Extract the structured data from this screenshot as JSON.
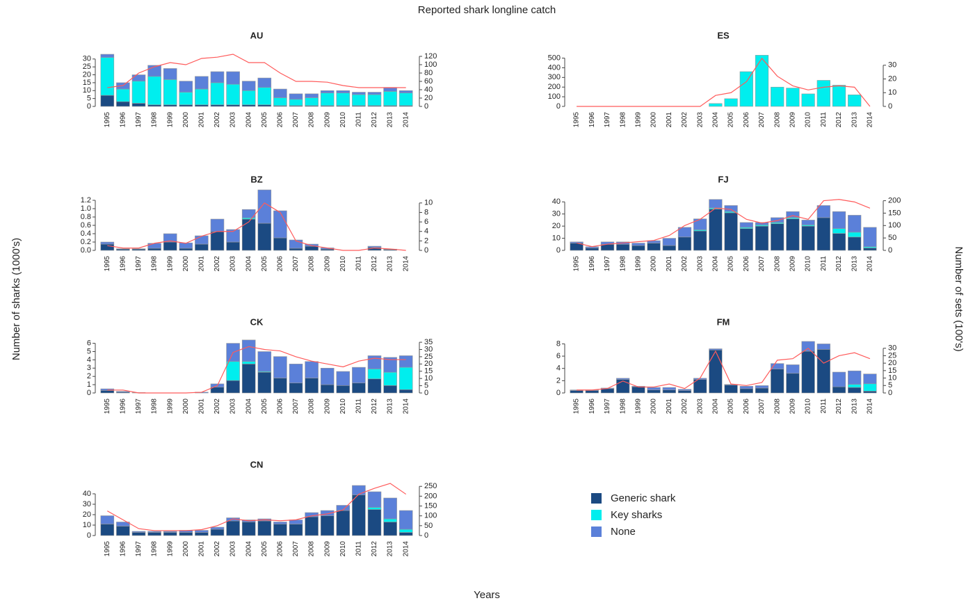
{
  "title": "Reported shark longline catch",
  "xlabel": "Years",
  "ylabel": "Number of sharks (1000's)",
  "y2label": "Number of sets (100's)",
  "chart_data": [
    {
      "type": "bar",
      "title": "AU",
      "categories": [
        "1995",
        "1996",
        "1997",
        "1998",
        "1999",
        "2000",
        "2001",
        "2002",
        "2003",
        "2004",
        "2005",
        "2006",
        "2007",
        "2008",
        "2009",
        "2010",
        "2011",
        "2012",
        "2013",
        "2014"
      ],
      "series": [
        {
          "name": "Generic shark",
          "color": "#1b4a82",
          "values": [
            7,
            3,
            2,
            1,
            1,
            1,
            1,
            1,
            1,
            1,
            1,
            0.5,
            0.5,
            0.5,
            0.5,
            0.5,
            0.5,
            0.5,
            0.5,
            0.5
          ]
        },
        {
          "name": "Key sharks",
          "color": "#00eeee",
          "values": [
            24,
            8,
            14,
            18,
            16,
            8,
            10,
            14,
            13,
            9,
            11,
            5,
            4,
            5,
            8,
            8,
            7,
            7,
            9,
            8
          ]
        },
        {
          "name": "None",
          "color": "#5b80d9",
          "values": [
            2,
            4,
            4,
            7,
            7,
            7,
            8,
            7,
            8,
            6,
            6,
            5.5,
            3.5,
            2.5,
            1.5,
            1.5,
            1.5,
            1.5,
            2.5,
            1.5
          ]
        },
        {
          "type": "line",
          "axis": "y2",
          "color": "#ff5a5a",
          "values": [
            45,
            50,
            80,
            95,
            105,
            100,
            115,
            118,
            125,
            105,
            105,
            80,
            60,
            60,
            58,
            50,
            45,
            45,
            45,
            45
          ]
        }
      ],
      "ylim": [
        0,
        33
      ],
      "yticks": [
        0,
        5,
        10,
        15,
        20,
        25,
        30
      ],
      "y2lim": [
        0,
        125
      ],
      "y2ticks": [
        0,
        20,
        40,
        60,
        80,
        100,
        120
      ]
    },
    {
      "type": "bar",
      "title": "ES",
      "categories": [
        "1995",
        "1996",
        "1997",
        "1998",
        "1999",
        "2000",
        "2001",
        "2002",
        "2003",
        "2004",
        "2005",
        "2006",
        "2007",
        "2008",
        "2009",
        "2010",
        "2011",
        "2012",
        "2013",
        "2014"
      ],
      "series": [
        {
          "name": "Generic shark",
          "color": "#1b4a82",
          "values": [
            0,
            0,
            0,
            0,
            0,
            0,
            0,
            0,
            0,
            0,
            0,
            0,
            0,
            0,
            0,
            0,
            0,
            0,
            0,
            0
          ]
        },
        {
          "name": "Key sharks",
          "color": "#00eeee",
          "values": [
            0,
            0,
            0,
            0,
            0,
            0,
            0,
            0,
            0,
            30,
            80,
            360,
            530,
            200,
            190,
            130,
            270,
            220,
            120,
            0
          ]
        },
        {
          "name": "None",
          "color": "#5b80d9",
          "values": [
            0,
            0,
            0,
            0,
            0,
            0,
            0,
            0,
            0,
            0,
            0,
            0,
            0,
            0,
            0,
            0,
            0,
            0,
            0,
            0
          ]
        },
        {
          "type": "line",
          "axis": "y2",
          "color": "#ff5a5a",
          "values": [
            0,
            0,
            0,
            0,
            0,
            0,
            0,
            0,
            0,
            8,
            10,
            18,
            35,
            22,
            15,
            12,
            14,
            15,
            14,
            0
          ]
        }
      ],
      "ylim": [
        0,
        540
      ],
      "yticks": [
        0,
        100,
        200,
        300,
        400,
        500
      ],
      "y2lim": [
        0,
        38
      ],
      "y2ticks": [
        0,
        10,
        20,
        30
      ]
    },
    {
      "type": "bar",
      "title": "BZ",
      "categories": [
        "1995",
        "1996",
        "1997",
        "1998",
        "1999",
        "2000",
        "2001",
        "2002",
        "2003",
        "2004",
        "2005",
        "2006",
        "2007",
        "2008",
        "2009",
        "2010",
        "2011",
        "2012",
        "2013",
        "2014"
      ],
      "series": [
        {
          "name": "Generic shark",
          "color": "#1b4a82",
          "values": [
            0.15,
            0.03,
            0.03,
            0.05,
            0.2,
            0.05,
            0.15,
            0.45,
            0.2,
            0.75,
            0.65,
            0.3,
            0.05,
            0.1,
            0.03,
            0,
            0,
            0.07,
            0.02,
            0
          ]
        },
        {
          "name": "Key sharks",
          "color": "#00eeee",
          "values": [
            0,
            0,
            0,
            0,
            0,
            0,
            0,
            0,
            0,
            0.03,
            0,
            0,
            0,
            0,
            0,
            0,
            0,
            0,
            0,
            0
          ]
        },
        {
          "name": "None",
          "color": "#5b80d9",
          "values": [
            0.05,
            0.01,
            0.01,
            0.12,
            0.2,
            0.13,
            0.2,
            0.3,
            0.3,
            0.2,
            0.8,
            0.65,
            0.2,
            0.05,
            0.03,
            0,
            0,
            0.03,
            0.01,
            0
          ]
        },
        {
          "type": "line",
          "axis": "y2",
          "color": "#ff5a5a",
          "values": [
            1,
            0.5,
            0.5,
            1.5,
            2,
            1.5,
            3,
            4,
            4,
            6,
            10,
            8,
            2,
            1,
            0.5,
            0,
            0,
            0.5,
            0.3,
            0
          ]
        }
      ],
      "ylim": [
        0,
        1.25
      ],
      "yticks": [
        {
          "value": 0,
          "label": "0.0"
        },
        0.2,
        0.4,
        0.6,
        0.8,
        {
          "value": 1,
          "label": "1.0"
        },
        1.2
      ],
      "y2lim": [
        0,
        11
      ],
      "y2ticks": [
        0,
        2,
        4,
        6,
        8,
        10
      ]
    },
    {
      "type": "bar",
      "title": "FJ",
      "categories": [
        "1995",
        "1996",
        "1997",
        "1998",
        "1999",
        "2000",
        "2001",
        "2002",
        "2003",
        "2004",
        "2005",
        "2006",
        "2007",
        "2008",
        "2009",
        "2010",
        "2011",
        "2012",
        "2013",
        "2014"
      ],
      "series": [
        {
          "name": "Generic shark",
          "color": "#1b4a82",
          "values": [
            6,
            2,
            5,
            5,
            4,
            6,
            4,
            11,
            16,
            34,
            31,
            18,
            20,
            22,
            26,
            20,
            27,
            14,
            11,
            2
          ]
        },
        {
          "name": "Key sharks",
          "color": "#00eeee",
          "values": [
            0,
            0,
            0,
            0,
            0,
            0,
            0,
            0,
            1,
            1,
            1,
            1,
            1,
            1,
            1,
            1,
            0,
            4,
            4,
            1
          ]
        },
        {
          "name": "None",
          "color": "#5b80d9",
          "values": [
            1,
            1,
            2,
            2,
            2,
            2,
            6,
            8,
            9,
            7,
            5,
            4,
            2,
            4,
            5,
            4,
            10,
            14,
            14,
            16
          ]
        },
        {
          "type": "line",
          "axis": "y2",
          "color": "#ff5a5a",
          "values": [
            30,
            15,
            25,
            30,
            35,
            40,
            60,
            100,
            125,
            170,
            165,
            125,
            110,
            120,
            140,
            125,
            200,
            205,
            195,
            170
          ]
        }
      ],
      "ylim": [
        0,
        43
      ],
      "yticks": [
        0,
        10,
        20,
        30,
        40
      ],
      "y2lim": [
        0,
        210
      ],
      "y2ticks": [
        0,
        50,
        100,
        150,
        200
      ]
    },
    {
      "type": "bar",
      "title": "CK",
      "categories": [
        "1995",
        "1996",
        "1997",
        "1998",
        "1999",
        "2000",
        "2001",
        "2002",
        "2003",
        "2004",
        "2005",
        "2006",
        "2007",
        "2008",
        "2009",
        "2010",
        "2011",
        "2012",
        "2013",
        "2014"
      ],
      "series": [
        {
          "name": "Generic shark",
          "color": "#1b4a82",
          "values": [
            0.3,
            0.1,
            0,
            0,
            0,
            0,
            0,
            0.7,
            1.5,
            3.5,
            2.5,
            1.8,
            1.2,
            1.8,
            1,
            0.9,
            1.2,
            1.7,
            0.9,
            0.4
          ]
        },
        {
          "name": "Key sharks",
          "color": "#00eeee",
          "values": [
            0,
            0,
            0,
            0,
            0,
            0,
            0,
            0,
            2.3,
            0.3,
            0.1,
            0,
            0,
            0,
            0,
            0,
            0,
            1.2,
            1.6,
            2.7
          ]
        },
        {
          "name": "None",
          "color": "#5b80d9",
          "values": [
            0.2,
            0.1,
            0.05,
            0,
            0,
            0,
            0.1,
            0.4,
            2.2,
            2.6,
            2.4,
            2.6,
            2.3,
            2,
            2,
            1.7,
            1.9,
            1.6,
            1.8,
            1.4
          ]
        },
        {
          "type": "line",
          "axis": "y2",
          "color": "#ff5a5a",
          "values": [
            2,
            2,
            0,
            0,
            0,
            0,
            0.5,
            5,
            28,
            32,
            30,
            29,
            25,
            22,
            20,
            18,
            22,
            24,
            23,
            23
          ]
        }
      ],
      "ylim": [
        0,
        6.3
      ],
      "yticks": [
        0,
        1,
        2,
        3,
        4,
        5,
        6
      ],
      "y2lim": [
        0,
        36
      ],
      "y2ticks": [
        0,
        5,
        10,
        15,
        20,
        25,
        30,
        35
      ]
    },
    {
      "type": "bar",
      "title": "FM",
      "categories": [
        "1995",
        "1996",
        "1997",
        "1998",
        "1999",
        "2000",
        "2001",
        "2002",
        "2003",
        "2004",
        "2005",
        "2006",
        "2007",
        "2008",
        "2009",
        "2010",
        "2011",
        "2012",
        "2013",
        "2014"
      ],
      "series": [
        {
          "name": "Generic shark",
          "color": "#1b4a82",
          "values": [
            0.4,
            0.4,
            0.7,
            2.2,
            1,
            0.5,
            0.5,
            0.4,
            2.2,
            7,
            1.3,
            0.7,
            0.8,
            3.9,
            3.2,
            6.8,
            7.1,
            1,
            0.9,
            0.3
          ]
        },
        {
          "name": "Key sharks",
          "color": "#00eeee",
          "values": [
            0,
            0,
            0,
            0,
            0,
            0,
            0,
            0,
            0,
            0,
            0,
            0,
            0,
            0,
            0,
            0,
            0,
            0,
            0.5,
            1.2
          ]
        },
        {
          "name": "None",
          "color": "#5b80d9",
          "values": [
            0.1,
            0.1,
            0.1,
            0.2,
            0.1,
            0.4,
            0.4,
            0.2,
            0.2,
            0.2,
            0.1,
            0.4,
            0.4,
            0.9,
            1.4,
            1.6,
            0.9,
            2.4,
            2.2,
            1.6
          ]
        },
        {
          "type": "line",
          "axis": "y2",
          "color": "#ff5a5a",
          "values": [
            2,
            2,
            3,
            8,
            4,
            4,
            6,
            3,
            10,
            28,
            6,
            5,
            7,
            22,
            23,
            30,
            20,
            25,
            27,
            23
          ]
        }
      ],
      "ylim": [
        0,
        8.5
      ],
      "yticks": [
        0,
        2,
        4,
        6,
        8
      ],
      "y2lim": [
        0,
        35
      ],
      "y2ticks": [
        0,
        5,
        10,
        15,
        20,
        25,
        30
      ]
    },
    {
      "type": "bar",
      "title": "CN",
      "categories": [
        "1995",
        "1996",
        "1997",
        "1998",
        "1999",
        "2000",
        "2001",
        "2002",
        "2003",
        "2004",
        "2005",
        "2006",
        "2007",
        "2008",
        "2009",
        "2010",
        "2011",
        "2012",
        "2013",
        "2014"
      ],
      "series": [
        {
          "name": "Generic shark",
          "color": "#1b4a82",
          "values": [
            11,
            9,
            3,
            3,
            3,
            3,
            3,
            6,
            14,
            13,
            14,
            11,
            11,
            18,
            19,
            24,
            39,
            25,
            13,
            3
          ]
        },
        {
          "name": "Key sharks",
          "color": "#00eeee",
          "values": [
            0,
            0,
            0,
            0,
            0,
            0,
            0,
            0,
            0,
            0,
            0,
            0,
            0,
            0,
            0,
            0,
            0,
            2,
            3,
            3
          ]
        },
        {
          "name": "None",
          "color": "#5b80d9",
          "values": [
            8,
            4,
            1,
            1,
            1,
            2,
            2,
            2,
            3,
            2,
            2,
            2,
            4,
            4,
            5,
            5,
            9,
            15,
            20,
            18
          ]
        },
        {
          "type": "line",
          "axis": "y2",
          "color": "#ff5a5a",
          "values": [
            125,
            80,
            35,
            25,
            25,
            25,
            30,
            50,
            85,
            75,
            80,
            75,
            80,
            100,
            110,
            130,
            210,
            240,
            265,
            210
          ]
        }
      ],
      "ylim": [
        0,
        50
      ],
      "yticks": [
        0,
        10,
        20,
        30,
        40
      ],
      "y2lim": [
        0,
        265
      ],
      "y2ticks": [
        0,
        50,
        100,
        150,
        200,
        250
      ]
    }
  ]
}
